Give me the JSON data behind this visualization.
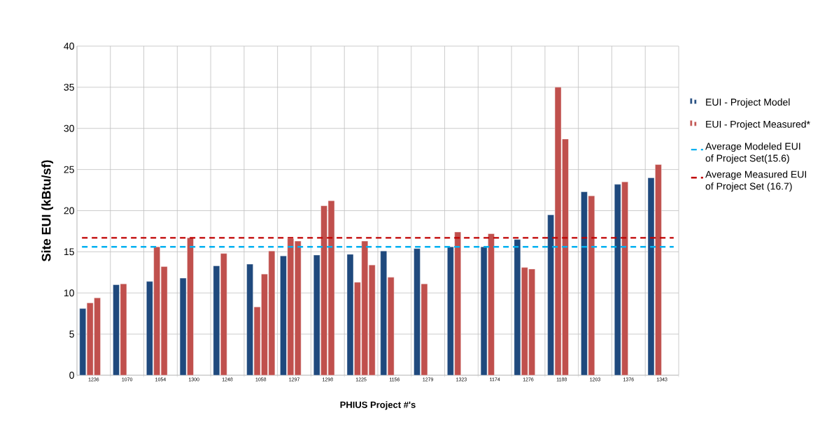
{
  "chart_data": {
    "type": "bar",
    "xlabel": "PHIUS Project #'s",
    "ylabel": "Site EUI (kBtu/sf)",
    "categories": [
      "1236",
      "1070",
      "1054",
      "1300",
      "1248",
      "1058",
      "1297",
      "1298",
      "1225",
      "1156",
      "1279",
      "1323",
      "1174",
      "1276",
      "1188",
      "1203",
      "1376",
      "1343"
    ],
    "series": [
      {
        "name": "EUI - Project Model",
        "color": "#1f497d",
        "values": [
          8.1,
          11.0,
          11.4,
          11.8,
          13.3,
          13.5,
          14.5,
          14.6,
          14.7,
          15.1,
          15.4,
          15.6,
          15.6,
          16.5,
          19.5,
          22.3,
          23.2,
          24.0
        ]
      },
      {
        "name": "EUI - Project Measured*",
        "color": "#c0504d",
        "values": [
          8.8,
          11.1,
          15.6,
          16.7,
          14.8,
          8.3,
          16.6,
          20.6,
          11.3,
          11.9,
          11.1,
          17.4,
          17.2,
          13.1,
          35.0,
          21.8,
          23.5,
          25.6
        ]
      },
      {
        "color": "#c0504d",
        "values": [
          9.4,
          null,
          13.2,
          null,
          null,
          12.3,
          16.3,
          21.2,
          16.3,
          null,
          null,
          null,
          null,
          12.9,
          28.7,
          null,
          null,
          null
        ]
      },
      {
        "color": "#c0504d",
        "values": [
          null,
          null,
          null,
          null,
          null,
          15.1,
          null,
          null,
          13.4,
          null,
          null,
          null,
          null,
          null,
          null,
          null,
          null,
          null
        ]
      }
    ],
    "ylim": [
      0,
      40
    ],
    "yticks": [
      0,
      5,
      10,
      15,
      20,
      25,
      30,
      35,
      40
    ],
    "grid": true,
    "legend": "right",
    "ref_lines": [
      {
        "axis": "y",
        "value": 15.6,
        "label": "Average Modeled EUI of Project Set(15.6)",
        "color": "#00b0f0",
        "line_style": "dashed"
      },
      {
        "axis": "y",
        "value": 16.7,
        "label": "Average Measured EUI of Project Set (16.7)",
        "color": "#c00000",
        "line_style": "dashed"
      }
    ]
  }
}
